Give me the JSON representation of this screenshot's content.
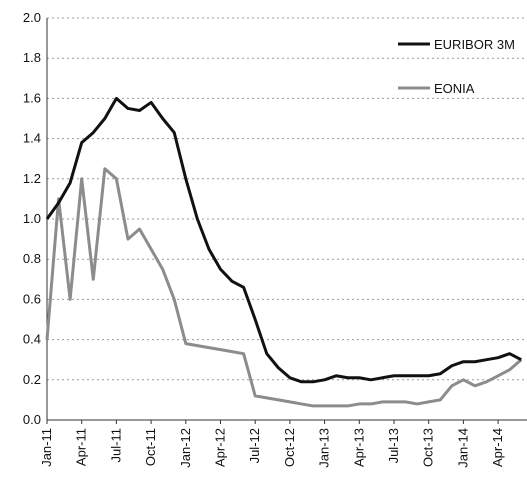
{
  "chart_data": {
    "type": "line",
    "categories": [
      "Jan-11",
      null,
      null,
      "Apr-11",
      null,
      null,
      "Jul-11",
      null,
      null,
      "Oct-11",
      null,
      null,
      "Jan-12",
      null,
      null,
      "Apr-12",
      null,
      null,
      "Jul-12",
      null,
      null,
      "Oct-12",
      null,
      null,
      "Jan-13",
      null,
      null,
      "Apr-13",
      null,
      null,
      "Jul-13",
      null,
      null,
      "Oct-13",
      null,
      null,
      "Jan-14",
      null,
      null,
      "Apr-14",
      null,
      null
    ],
    "series": [
      {
        "name": "EURIBOR 3M",
        "color": "#111111",
        "values": [
          1.0,
          1.08,
          1.18,
          1.38,
          1.43,
          1.5,
          1.6,
          1.55,
          1.54,
          1.58,
          1.5,
          1.43,
          1.2,
          1.0,
          0.85,
          0.75,
          0.69,
          0.66,
          0.5,
          0.33,
          0.26,
          0.21,
          0.19,
          0.19,
          0.2,
          0.22,
          0.21,
          0.21,
          0.2,
          0.21,
          0.22,
          0.22,
          0.22,
          0.22,
          0.23,
          0.27,
          0.29,
          0.29,
          0.3,
          0.31,
          0.33,
          0.3
        ]
      },
      {
        "name": "EONIA",
        "color": "#8c8c8c",
        "values": [
          0.4,
          1.1,
          0.6,
          1.2,
          0.7,
          1.25,
          1.2,
          0.9,
          0.95,
          0.85,
          0.75,
          0.6,
          0.38,
          0.37,
          0.36,
          0.35,
          0.34,
          0.33,
          0.12,
          0.11,
          0.1,
          0.09,
          0.08,
          0.07,
          0.07,
          0.07,
          0.07,
          0.08,
          0.08,
          0.09,
          0.09,
          0.09,
          0.08,
          0.09,
          0.1,
          0.17,
          0.2,
          0.17,
          0.19,
          0.22,
          0.25,
          0.3
        ]
      }
    ],
    "ylim": [
      0,
      2.0
    ],
    "yticks": [
      {
        "value": 0,
        "label": "0.0"
      },
      0.2,
      0.4,
      0.6,
      0.8,
      {
        "value": 1,
        "label": "1.0"
      },
      1.2,
      1.4,
      1.6,
      1.8,
      {
        "value": 2,
        "label": "2.0"
      }
    ],
    "grid": true,
    "legend": "upper right"
  }
}
